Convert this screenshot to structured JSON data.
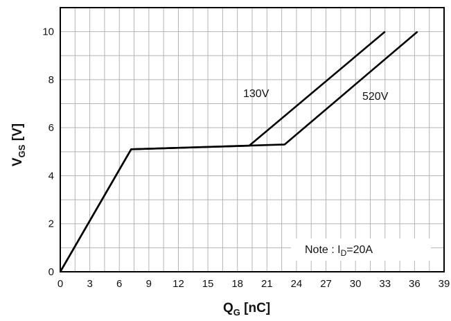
{
  "chart_data": {
    "type": "line",
    "x_axis": {
      "label_main": "Q",
      "label_sub": "G",
      "label_unit": " [nC]",
      "range": [
        0,
        39
      ],
      "ticks": [
        "0",
        "3",
        "6",
        "9",
        "12",
        "15",
        "18",
        "21",
        "24",
        "27",
        "30",
        "33",
        "36",
        "39"
      ]
    },
    "y_axis": {
      "label_main": "V",
      "label_sub": "GS",
      "label_unit": " [V]",
      "range": [
        0,
        11
      ],
      "ticks": [
        "0",
        "2",
        "4",
        "6",
        "8",
        "10"
      ]
    },
    "grid": true,
    "series": [
      {
        "name": "130V",
        "points": [
          [
            0,
            0
          ],
          [
            7.2,
            5.1
          ],
          [
            19.2,
            5.25
          ],
          [
            33,
            10
          ]
        ]
      },
      {
        "name": "520V",
        "points": [
          [
            0,
            0
          ],
          [
            7.2,
            5.1
          ],
          [
            22.8,
            5.3
          ],
          [
            36.3,
            10
          ]
        ]
      }
    ],
    "note": {
      "prefix": "Note : I",
      "sub": "D",
      "suffix": "=20A"
    }
  }
}
